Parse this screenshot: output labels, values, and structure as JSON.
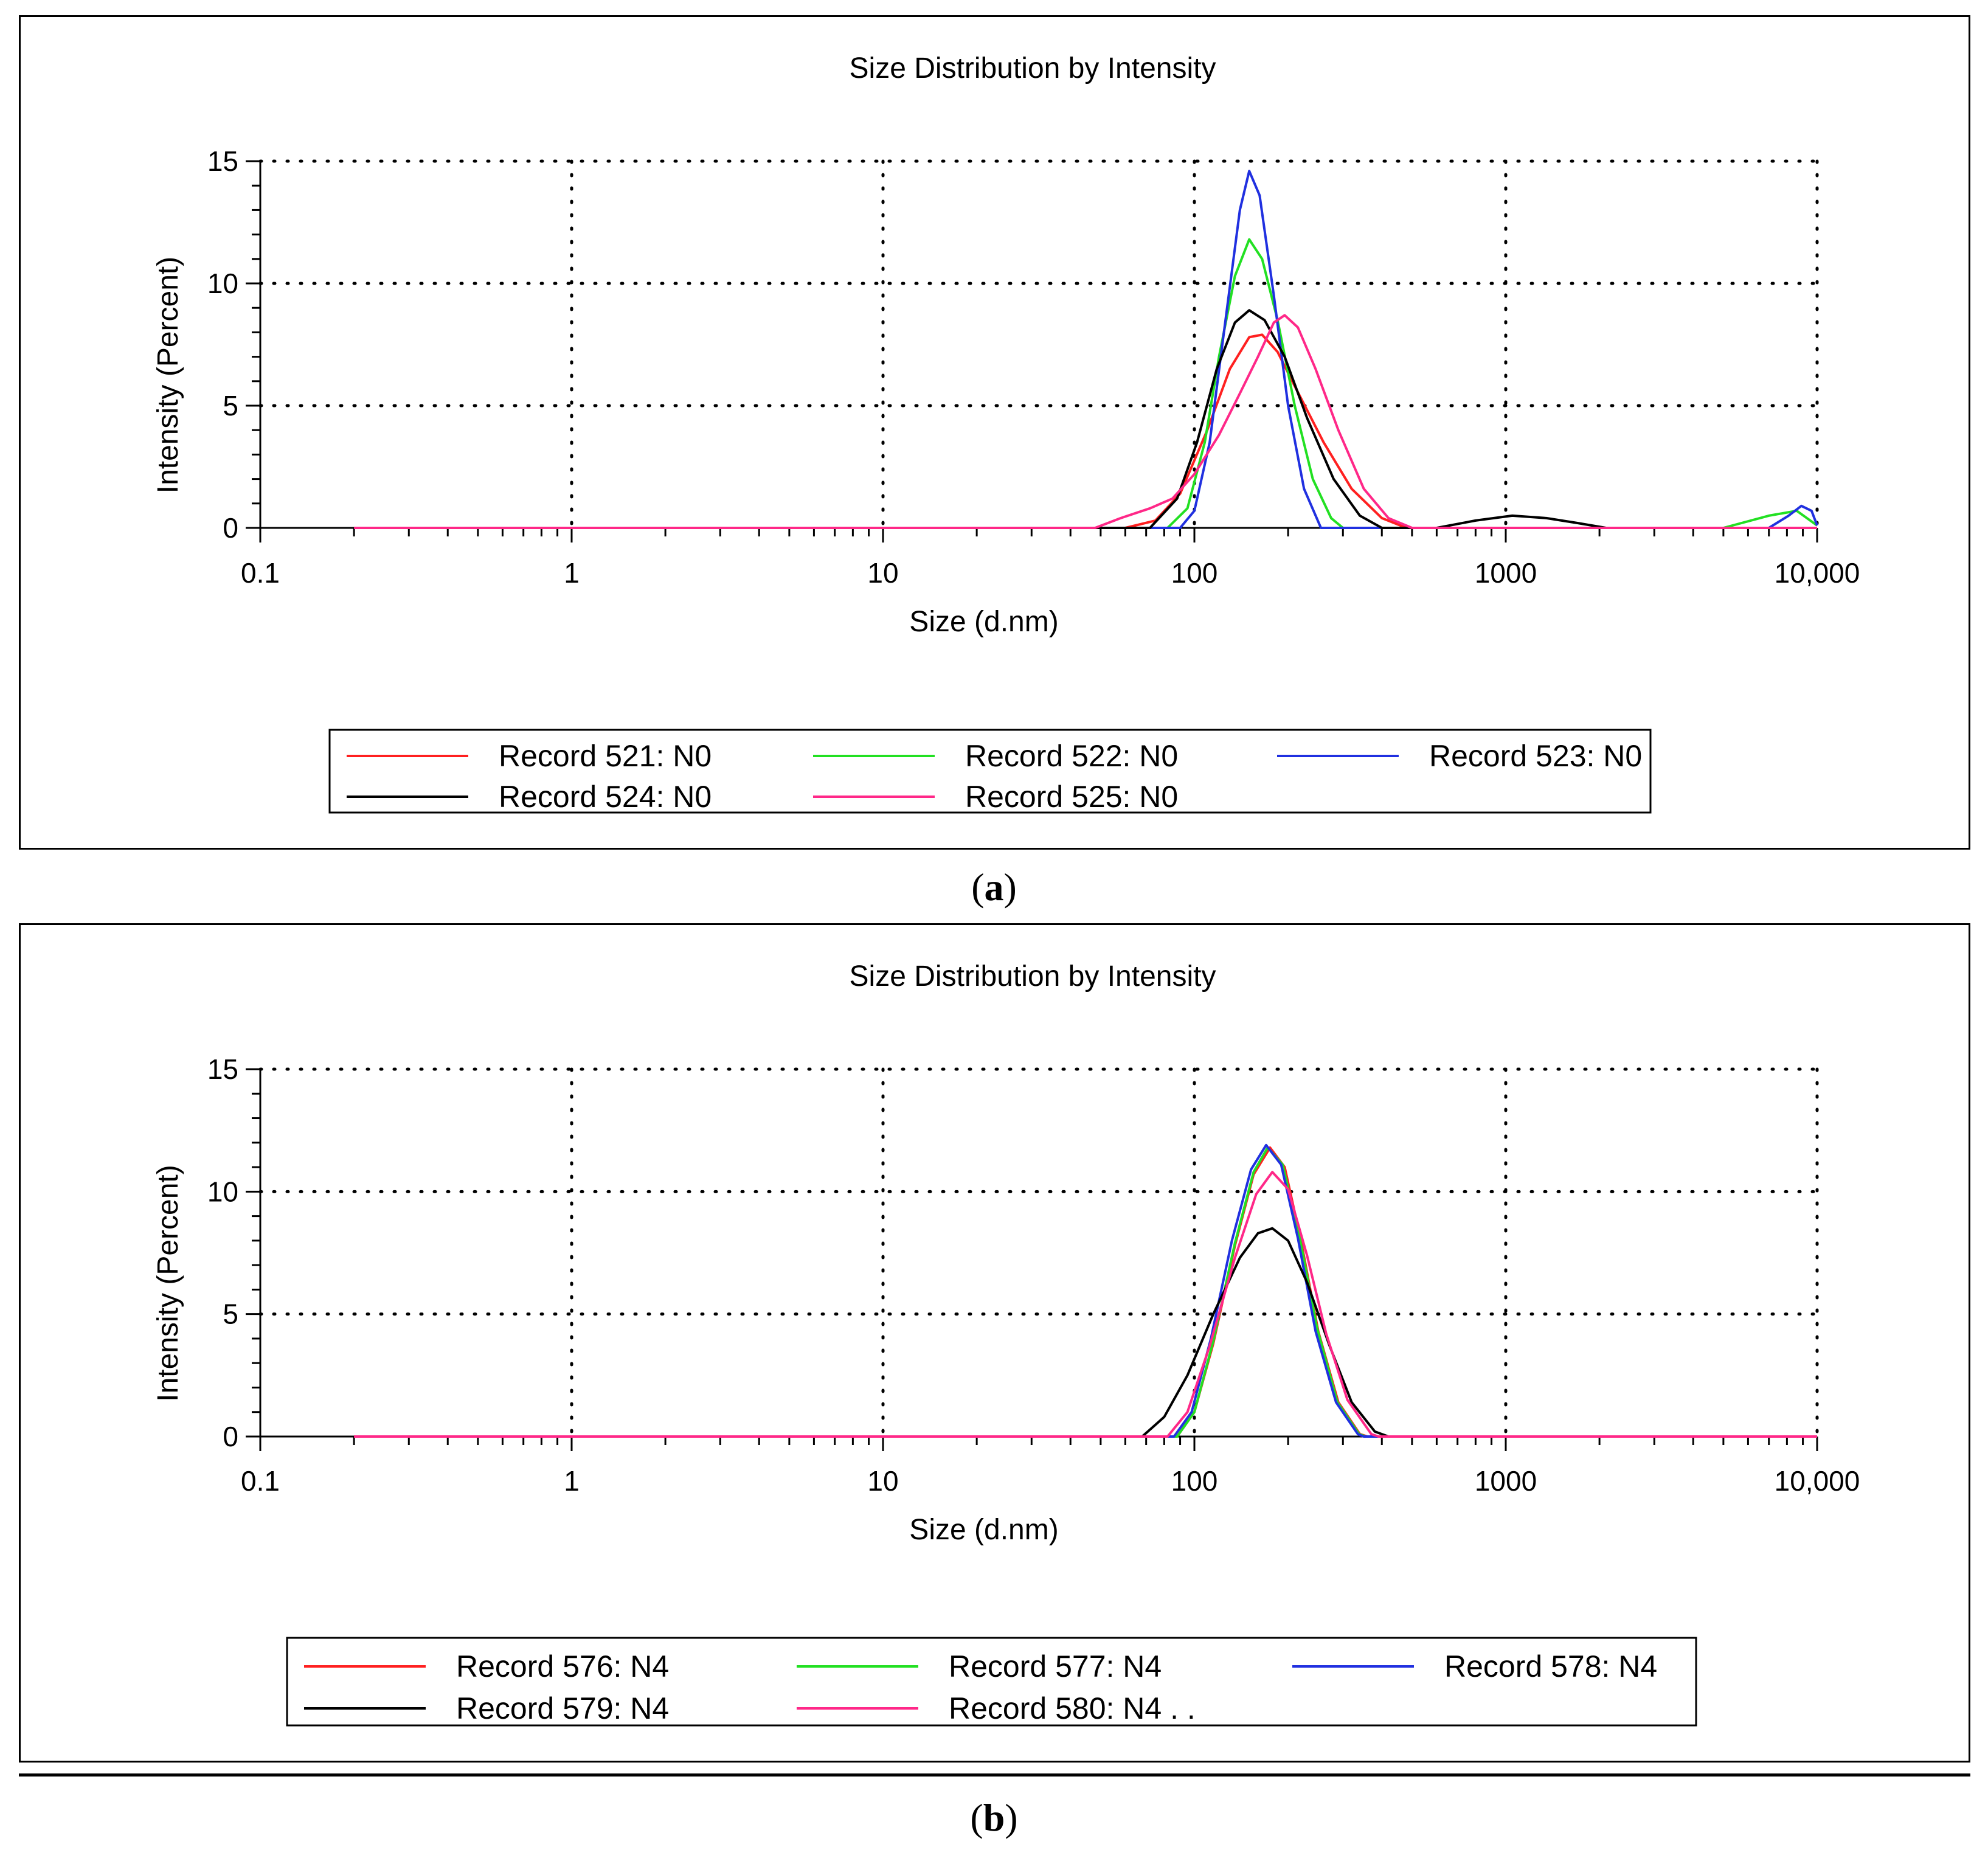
{
  "figure": {
    "caption_a": "a",
    "caption_b": "b"
  },
  "chart_data": [
    {
      "id": "a",
      "type": "line",
      "title": "Size Distribution by Intensity",
      "xlabel": "Size (d.nm)",
      "ylabel": "Intensity (Percent)",
      "xscale": "log",
      "xlim": [
        0.1,
        10000
      ],
      "ylim": [
        0,
        15
      ],
      "x_ticks": [
        0.1,
        1,
        10,
        100,
        1000,
        10000
      ],
      "x_tick_labels": [
        "0.1",
        "1",
        "10",
        "100",
        "1000",
        "10,000"
      ],
      "y_ticks": [
        0,
        5,
        10,
        15
      ],
      "y_tick_labels": [
        "0",
        "5",
        "10",
        "15"
      ],
      "grid": "dotted",
      "legend_position": "bottom",
      "series": [
        {
          "name": "Record 521: N0",
          "color": "#ff2020",
          "points": [
            [
              0.2,
              0
            ],
            [
              60,
              0
            ],
            [
              75,
              0.3
            ],
            [
              90,
              1.4
            ],
            [
              110,
              4.0
            ],
            [
              130,
              6.5
            ],
            [
              150,
              7.8
            ],
            [
              165,
              7.9
            ],
            [
              185,
              7.2
            ],
            [
              210,
              5.8
            ],
            [
              260,
              3.5
            ],
            [
              320,
              1.6
            ],
            [
              400,
              0.4
            ],
            [
              480,
              0
            ],
            [
              10000,
              0
            ]
          ]
        },
        {
          "name": "Record 522: N0",
          "color": "#22e022",
          "points": [
            [
              0.2,
              0
            ],
            [
              82,
              0
            ],
            [
              95,
              0.8
            ],
            [
              108,
              3.5
            ],
            [
              120,
              7.0
            ],
            [
              135,
              10.3
            ],
            [
              150,
              11.8
            ],
            [
              165,
              11.0
            ],
            [
              185,
              8.5
            ],
            [
              210,
              5.0
            ],
            [
              240,
              2.0
            ],
            [
              275,
              0.4
            ],
            [
              300,
              0
            ],
            [
              5000,
              0
            ],
            [
              7000,
              0.5
            ],
            [
              8600,
              0.7
            ],
            [
              10000,
              0.1
            ]
          ]
        },
        {
          "name": "Record 523: N0",
          "color": "#2030e0",
          "points": [
            [
              0.2,
              0
            ],
            [
              90,
              0
            ],
            [
              100,
              0.7
            ],
            [
              112,
              3.5
            ],
            [
              125,
              8.2
            ],
            [
              140,
              13.0
            ],
            [
              150,
              14.6
            ],
            [
              162,
              13.6
            ],
            [
              180,
              9.5
            ],
            [
              200,
              5.0
            ],
            [
              225,
              1.6
            ],
            [
              255,
              0
            ],
            [
              7000,
              0
            ],
            [
              8100,
              0.5
            ],
            [
              8900,
              0.9
            ],
            [
              9600,
              0.7
            ],
            [
              10000,
              0.1
            ]
          ]
        },
        {
          "name": "Record 524: N0",
          "color": "#000000",
          "points": [
            [
              0.2,
              0
            ],
            [
              72,
              0
            ],
            [
              88,
              1.2
            ],
            [
              102,
              3.5
            ],
            [
              118,
              6.5
            ],
            [
              135,
              8.4
            ],
            [
              150,
              8.9
            ],
            [
              168,
              8.5
            ],
            [
              195,
              7.0
            ],
            [
              230,
              4.5
            ],
            [
              280,
              2.0
            ],
            [
              340,
              0.5
            ],
            [
              400,
              0
            ],
            [
              600,
              0
            ],
            [
              800,
              0.3
            ],
            [
              1050,
              0.5
            ],
            [
              1350,
              0.4
            ],
            [
              1700,
              0.2
            ],
            [
              2100,
              0
            ],
            [
              10000,
              0
            ]
          ]
        },
        {
          "name": "Record 525: N0",
          "color": "#ff2888",
          "points": [
            [
              0.2,
              0
            ],
            [
              48,
              0
            ],
            [
              58,
              0.4
            ],
            [
              72,
              0.8
            ],
            [
              85,
              1.2
            ],
            [
              100,
              2.2
            ],
            [
              120,
              3.8
            ],
            [
              140,
              5.5
            ],
            [
              160,
              7.0
            ],
            [
              180,
              8.4
            ],
            [
              195,
              8.7
            ],
            [
              215,
              8.2
            ],
            [
              245,
              6.5
            ],
            [
              290,
              4.0
            ],
            [
              350,
              1.6
            ],
            [
              420,
              0.4
            ],
            [
              500,
              0
            ],
            [
              10000,
              0
            ]
          ]
        }
      ]
    },
    {
      "id": "b",
      "type": "line",
      "title": "Size Distribution by Intensity",
      "xlabel": "Size (d.nm)",
      "ylabel": "Intensity (Percent)",
      "xscale": "log",
      "xlim": [
        0.1,
        10000
      ],
      "ylim": [
        0,
        15
      ],
      "x_ticks": [
        0.1,
        1,
        10,
        100,
        1000,
        10000
      ],
      "x_tick_labels": [
        "0.1",
        "1",
        "10",
        "100",
        "1000",
        "10,000"
      ],
      "y_ticks": [
        0,
        5,
        10,
        15
      ],
      "y_tick_labels": [
        "0",
        "5",
        "10",
        "15"
      ],
      "grid": "dotted",
      "legend_position": "bottom",
      "series": [
        {
          "name": "Record 576: N4",
          "color": "#ff2020",
          "points": [
            [
              0.2,
              0
            ],
            [
              88,
              0
            ],
            [
              100,
              1.0
            ],
            [
              115,
              3.8
            ],
            [
              135,
              7.8
            ],
            [
              155,
              10.7
            ],
            [
              175,
              11.8
            ],
            [
              195,
              11.0
            ],
            [
              220,
              8.0
            ],
            [
              250,
              4.3
            ],
            [
              290,
              1.4
            ],
            [
              340,
              0.1
            ],
            [
              360,
              0
            ],
            [
              10000,
              0
            ]
          ]
        },
        {
          "name": "Record 577: N4",
          "color": "#22e022",
          "points": [
            [
              0.2,
              0
            ],
            [
              88,
              0
            ],
            [
              100,
              1.0
            ],
            [
              115,
              3.9
            ],
            [
              135,
              7.9
            ],
            [
              155,
              10.8
            ],
            [
              172,
              11.8
            ],
            [
              192,
              11.1
            ],
            [
              218,
              8.1
            ],
            [
              248,
              4.4
            ],
            [
              288,
              1.4
            ],
            [
              338,
              0.1
            ],
            [
              355,
              0
            ],
            [
              10000,
              0
            ]
          ]
        },
        {
          "name": "Record 578: N4",
          "color": "#2030e0",
          "points": [
            [
              0.2,
              0
            ],
            [
              86,
              0
            ],
            [
              98,
              1.0
            ],
            [
              113,
              4.0
            ],
            [
              132,
              8.0
            ],
            [
              152,
              10.9
            ],
            [
              170,
              11.9
            ],
            [
              190,
              11.1
            ],
            [
              215,
              8.1
            ],
            [
              245,
              4.3
            ],
            [
              285,
              1.4
            ],
            [
              335,
              0.1
            ],
            [
              350,
              0
            ],
            [
              10000,
              0
            ]
          ]
        },
        {
          "name": "Record 579: N4",
          "color": "#000000",
          "points": [
            [
              0.2,
              0
            ],
            [
              68,
              0
            ],
            [
              80,
              0.8
            ],
            [
              95,
              2.5
            ],
            [
              115,
              5.0
            ],
            [
              140,
              7.3
            ],
            [
              160,
              8.3
            ],
            [
              178,
              8.5
            ],
            [
              200,
              8.0
            ],
            [
              230,
              6.3
            ],
            [
              270,
              3.8
            ],
            [
              320,
              1.4
            ],
            [
              380,
              0.2
            ],
            [
              420,
              0
            ],
            [
              10000,
              0
            ]
          ]
        },
        {
          "name": "Record 580: N4 . .",
          "color": "#ff2888",
          "points": [
            [
              0.2,
              0
            ],
            [
              82,
              0
            ],
            [
              95,
              1.0
            ],
            [
              112,
              3.7
            ],
            [
              135,
              7.3
            ],
            [
              158,
              9.9
            ],
            [
              178,
              10.8
            ],
            [
              200,
              10.1
            ],
            [
              230,
              7.4
            ],
            [
              265,
              4.2
            ],
            [
              310,
              1.5
            ],
            [
              370,
              0.1
            ],
            [
              390,
              0
            ],
            [
              10000,
              0
            ]
          ]
        }
      ]
    }
  ]
}
